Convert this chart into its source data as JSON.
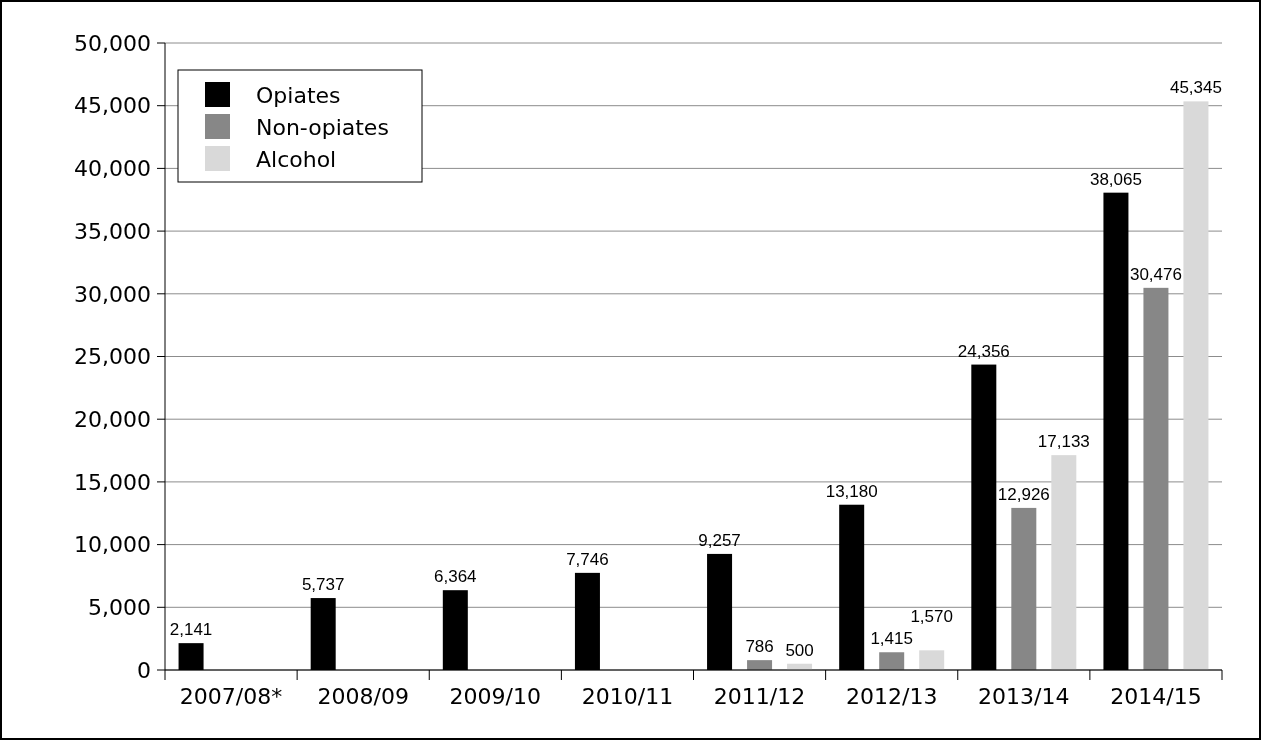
{
  "chart_data": {
    "type": "bar",
    "categories": [
      "2007/08*",
      "2008/09",
      "2009/10",
      "2010/11",
      "2011/12",
      "2012/13",
      "2013/14",
      "2014/15"
    ],
    "series": [
      {
        "name": "Opiates",
        "color": "#000000",
        "values": [
          2141,
          5737,
          6364,
          7746,
          9257,
          13180,
          24356,
          38065
        ],
        "value_labels": [
          "2,141",
          "5,737",
          "6,364",
          "7,746",
          "9,257",
          "13,180",
          "24,356",
          "38,065"
        ]
      },
      {
        "name": "Non-opiates",
        "color": "#878787",
        "values": [
          null,
          null,
          null,
          null,
          786,
          1415,
          12926,
          30476
        ],
        "value_labels": [
          null,
          null,
          null,
          null,
          "786",
          "1,415",
          "12,926",
          "30,476"
        ]
      },
      {
        "name": "Alcohol",
        "color": "#d9d9d9",
        "values": [
          null,
          null,
          null,
          null,
          500,
          1570,
          17133,
          45345
        ],
        "value_labels": [
          null,
          null,
          null,
          null,
          "500",
          "1,570",
          "17,133",
          "45,345"
        ]
      }
    ],
    "ylim": [
      0,
      50000
    ],
    "yticks": [
      {
        "value": 0,
        "label": "0"
      },
      {
        "value": 5000,
        "label": "5,000"
      },
      {
        "value": 10000,
        "label": "10,000"
      },
      {
        "value": 15000,
        "label": "15,000"
      },
      {
        "value": 20000,
        "label": "20,000"
      },
      {
        "value": 25000,
        "label": "25,000"
      },
      {
        "value": 30000,
        "label": "30,000"
      },
      {
        "value": 35000,
        "label": "35,000"
      },
      {
        "value": 40000,
        "label": "40,000"
      },
      {
        "value": 45000,
        "label": "45,000"
      },
      {
        "value": 50000,
        "label": "50,000"
      }
    ],
    "grid": "y",
    "legend": "top left"
  }
}
